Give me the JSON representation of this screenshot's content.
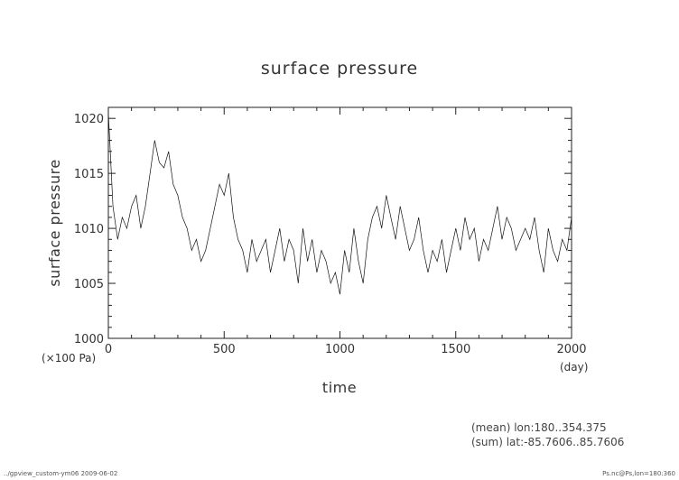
{
  "chart_data": {
    "type": "line",
    "title": "surface pressure",
    "xlabel": "time",
    "ylabel": "surface pressure",
    "x_unit": "(day)",
    "y_unit": "(×100 Pa)",
    "xlim": [
      0,
      2000
    ],
    "ylim": [
      1000,
      1021
    ],
    "x_ticks": [
      "0",
      "500",
      "1000",
      "1500",
      "2000"
    ],
    "y_ticks": [
      "1000",
      "1005",
      "1010",
      "1015",
      "1020"
    ],
    "grid": false,
    "series": [
      {
        "x": [
          0,
          20,
          40,
          60,
          80,
          100,
          120,
          140,
          160,
          180,
          200,
          220,
          240,
          260,
          280,
          300,
          320,
          340,
          360,
          380,
          400,
          420,
          440,
          460,
          480,
          500,
          520,
          540,
          560,
          580,
          600,
          620,
          640,
          660,
          680,
          700,
          720,
          740,
          760,
          780,
          800,
          820,
          840,
          860,
          880,
          900,
          920,
          940,
          960,
          980,
          1000,
          1020,
          1040,
          1060,
          1080,
          1100,
          1120,
          1140,
          1160,
          1180,
          1200,
          1220,
          1240,
          1260,
          1280,
          1300,
          1320,
          1340,
          1360,
          1380,
          1400,
          1420,
          1440,
          1460,
          1480,
          1500,
          1520,
          1540,
          1560,
          1580,
          1600,
          1620,
          1640,
          1660,
          1680,
          1700,
          1720,
          1740,
          1760,
          1780,
          1800,
          1820,
          1840,
          1860,
          1880,
          1900,
          1920,
          1940,
          1960,
          1980,
          2000
        ],
        "values": [
          1020.5,
          1012,
          1009,
          1011,
          1010,
          1012,
          1013,
          1010,
          1012,
          1015,
          1018,
          1016,
          1015.5,
          1017,
          1014,
          1013,
          1011,
          1010,
          1008,
          1009,
          1007,
          1008,
          1010,
          1012,
          1014,
          1013,
          1015,
          1011,
          1009,
          1008,
          1006,
          1009,
          1007,
          1008,
          1009,
          1006,
          1008,
          1010,
          1007,
          1009,
          1008,
          1005,
          1010,
          1007,
          1009,
          1006,
          1008,
          1007,
          1005,
          1006,
          1004,
          1008,
          1006,
          1010,
          1007,
          1005,
          1009,
          1011,
          1012,
          1010,
          1013,
          1011,
          1009,
          1012,
          1010,
          1008,
          1009,
          1011,
          1008,
          1006,
          1008,
          1007,
          1009,
          1006,
          1008,
          1010,
          1008,
          1011,
          1009,
          1010,
          1007,
          1009,
          1008,
          1010,
          1012,
          1009,
          1011,
          1010,
          1008,
          1009,
          1010,
          1009,
          1011,
          1008,
          1006,
          1010,
          1008,
          1007,
          1009,
          1008,
          1011
        ]
      }
    ]
  },
  "annotations": {
    "mean": "(mean) lon:180..354.375",
    "sum": "(sum) lat:-85.7606..85.7606"
  },
  "footer": {
    "left": "../gpview_custom-ym06  2009-06-02",
    "right": "Ps.nc@Ps,lon=180:360"
  },
  "colors": {
    "line": "#111111",
    "axis": "#222222"
  }
}
